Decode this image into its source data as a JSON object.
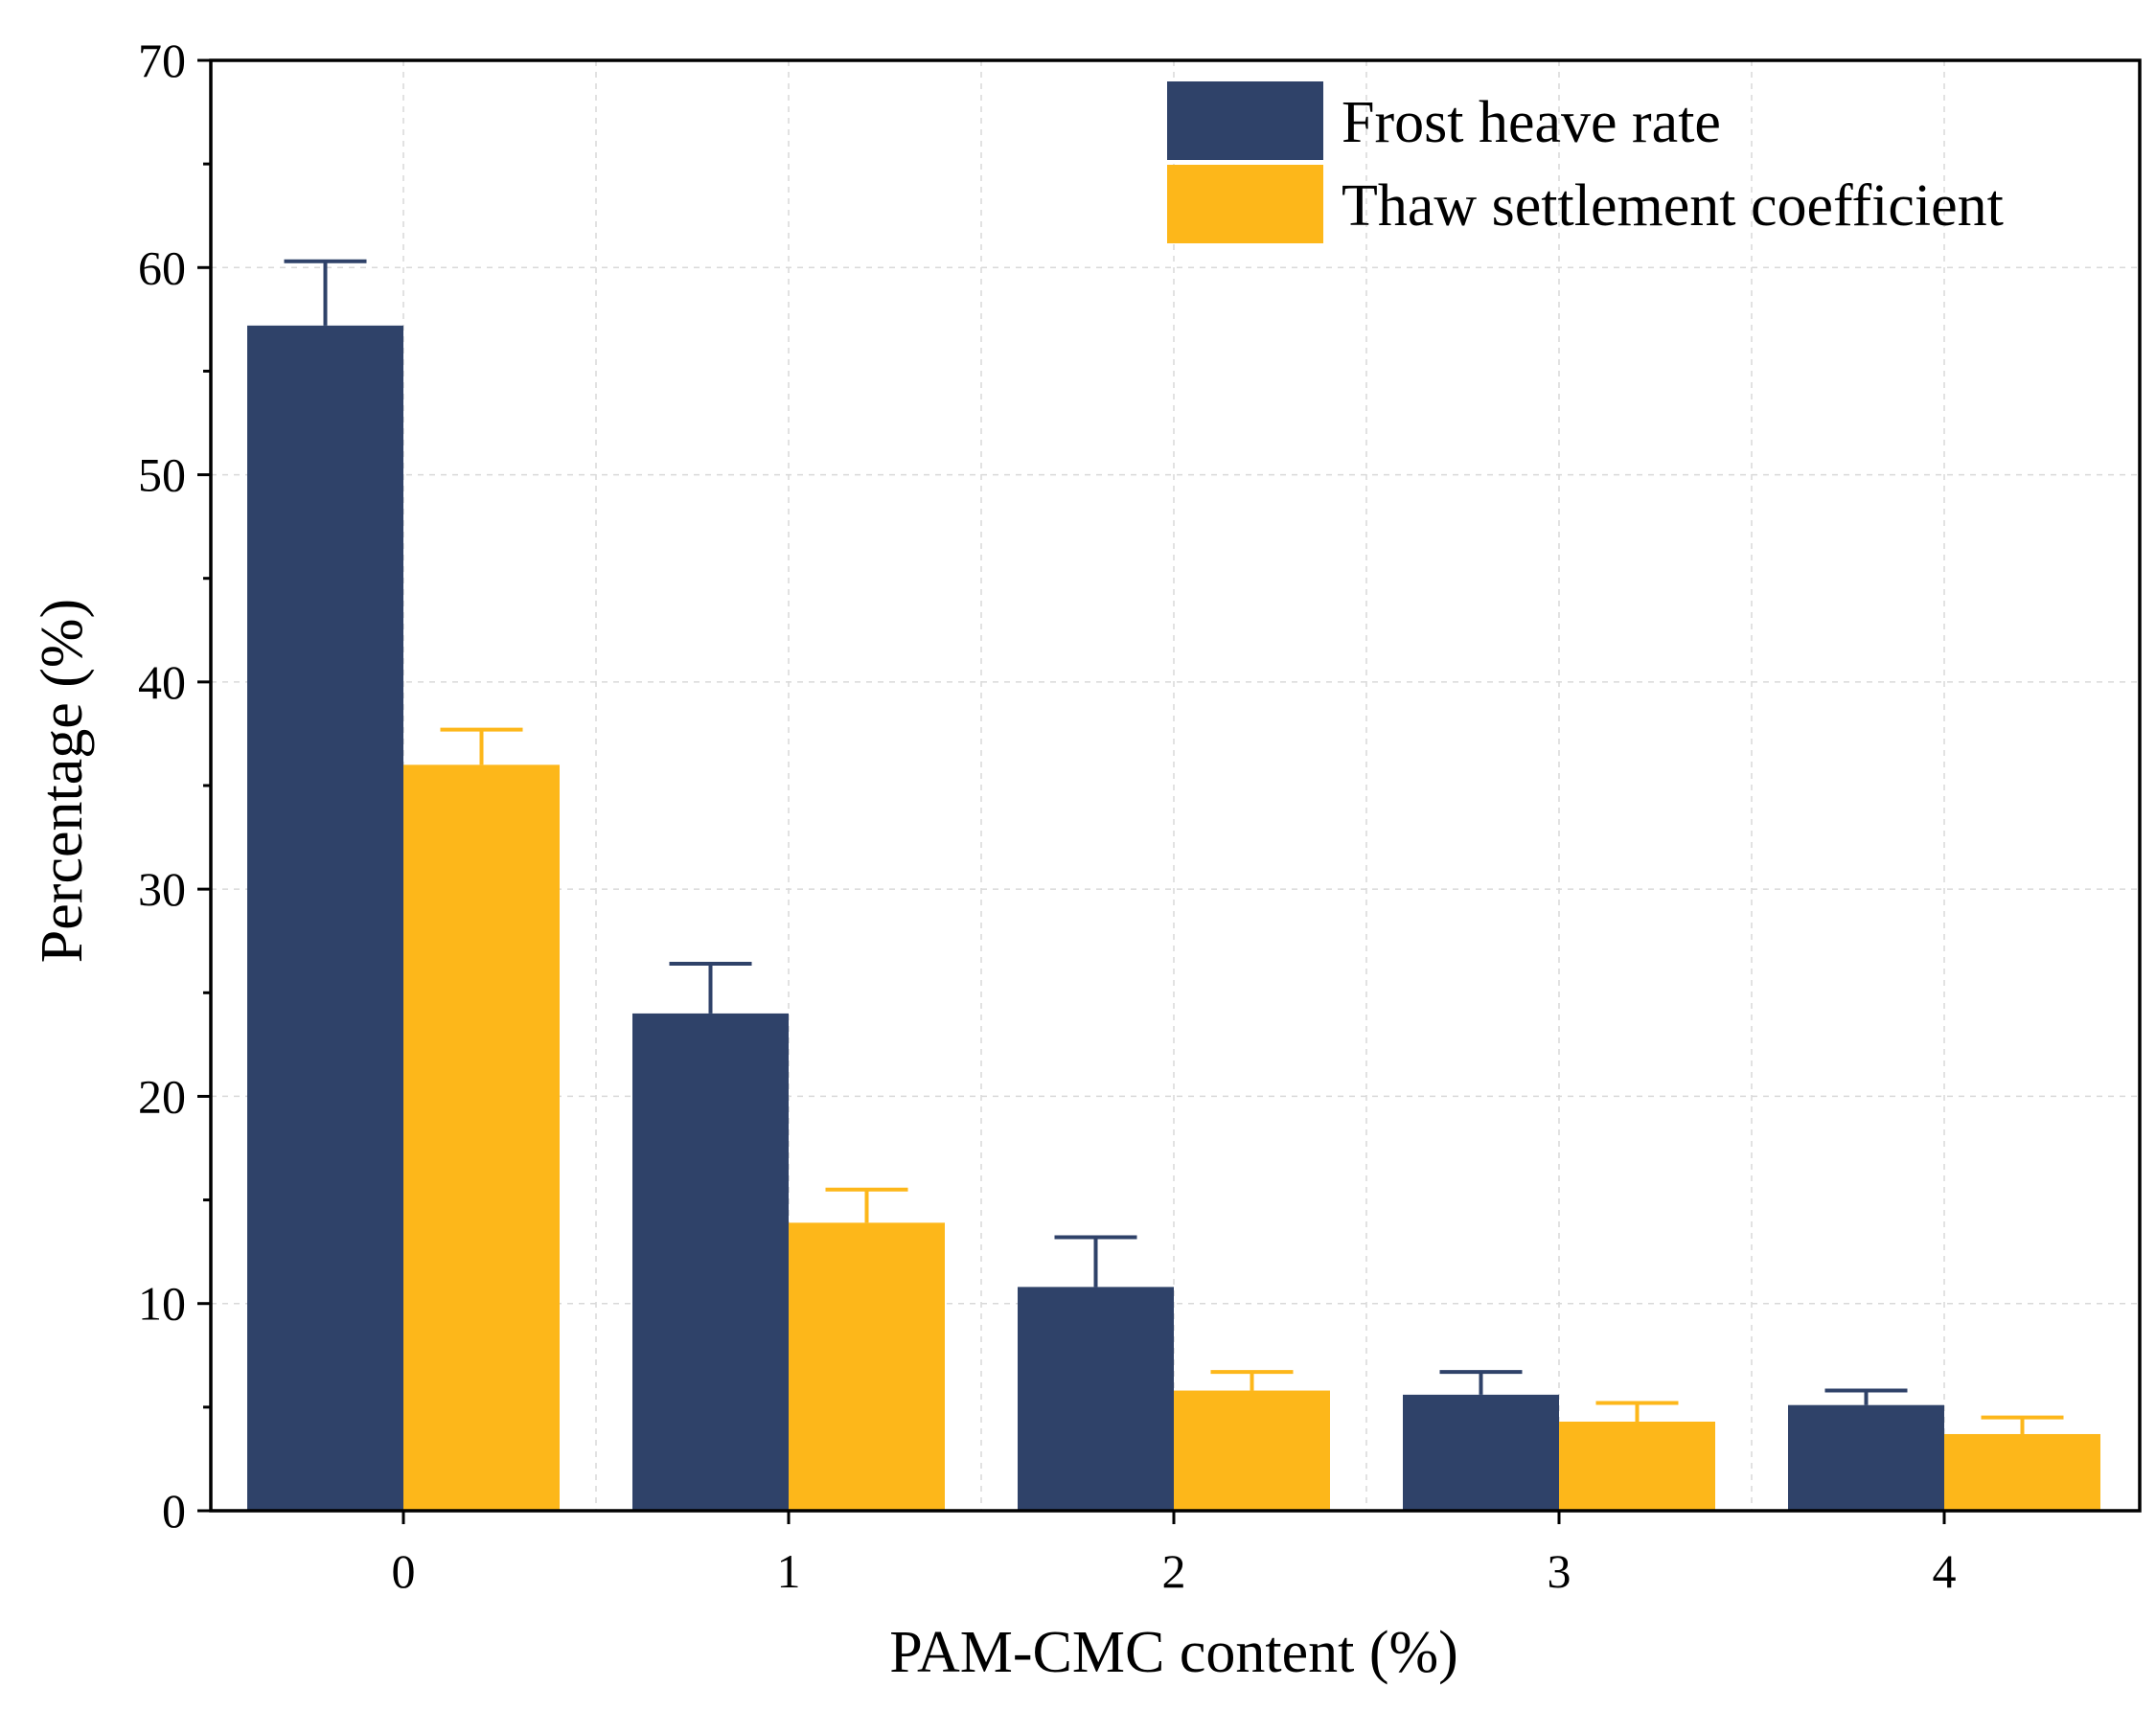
{
  "chart_data": {
    "type": "bar",
    "title": "",
    "xlabel": "PAM-CMC content (%)",
    "ylabel": "Percentage (%)",
    "ylim": [
      0,
      70
    ],
    "yticks": [
      0,
      10,
      20,
      30,
      40,
      50,
      60,
      70
    ],
    "categories": [
      "0",
      "1",
      "2",
      "3",
      "4"
    ],
    "grid": true,
    "legend_position": "top-right",
    "series": [
      {
        "name": "Frost heave rate",
        "color": "#2F4269",
        "values": [
          57.2,
          24.0,
          10.8,
          5.6,
          5.1
        ],
        "error": [
          3.1,
          2.4,
          2.4,
          1.1,
          0.7
        ]
      },
      {
        "name": "Thaw settlement coefficient",
        "color": "#FDB71A",
        "values": [
          36.0,
          13.9,
          5.8,
          4.3,
          3.7
        ],
        "error": [
          1.7,
          1.6,
          0.9,
          0.9,
          0.8
        ]
      }
    ]
  }
}
